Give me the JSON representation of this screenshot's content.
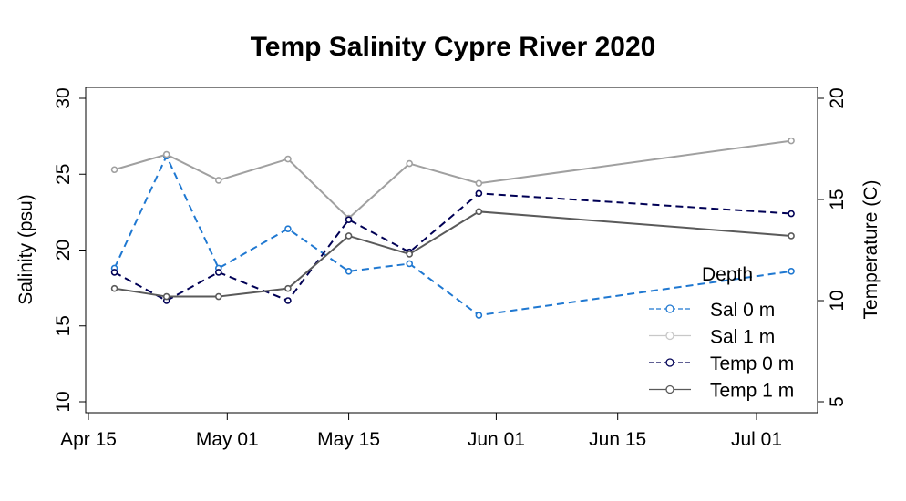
{
  "chart_data": {
    "type": "line",
    "title": "Temp Salinity Cypre River 2020",
    "xlabel": "",
    "ylabel_left": "Salinity (psu)",
    "ylabel_right": "Temperature (C)",
    "x_ticks": [
      "2020-04-15",
      "2020-05-01",
      "2020-05-15",
      "2020-06-01",
      "2020-06-15",
      "2020-07-01"
    ],
    "x_tick_labels": [
      "Apr 15",
      "May 01",
      "May 15",
      "Jun 01",
      "Jun 15",
      "Jul 01"
    ],
    "xlim": [
      "2020-04-15",
      "2020-07-07"
    ],
    "ylim_left": [
      10,
      30
    ],
    "y_ticks_left": [
      10,
      15,
      20,
      25,
      30
    ],
    "ylim_right": [
      5,
      20
    ],
    "y_ticks_right": [
      5,
      10,
      15,
      20
    ],
    "grid": false,
    "legend_title": "Depth",
    "legend_position": "bottom-right",
    "x": [
      "2020-04-18",
      "2020-04-24",
      "2020-04-30",
      "2020-05-08",
      "2020-05-15",
      "2020-05-22",
      "2020-05-30",
      "2020-07-05"
    ],
    "series": [
      {
        "name": "Sal 0 m",
        "axis": "left",
        "color": "#1f78d1",
        "dash": true,
        "values": [
          18.8,
          26.2,
          18.8,
          21.4,
          18.6,
          19.1,
          15.7,
          18.6
        ]
      },
      {
        "name": "Sal 1 m",
        "axis": "left",
        "color": "#a0a0a0",
        "dash": false,
        "values": [
          25.3,
          26.3,
          24.6,
          26.0,
          22.1,
          25.7,
          24.4,
          27.2
        ]
      },
      {
        "name": "Temp 0 m",
        "axis": "right",
        "color": "#000055",
        "dash": true,
        "values": [
          11.4,
          10.0,
          11.4,
          10.0,
          14.0,
          12.4,
          15.3,
          14.3
        ]
      },
      {
        "name": "Temp 1 m",
        "axis": "right",
        "color": "#5a5a5a",
        "dash": false,
        "values": [
          10.6,
          10.2,
          10.2,
          10.6,
          13.2,
          12.3,
          14.4,
          13.2
        ]
      }
    ]
  }
}
